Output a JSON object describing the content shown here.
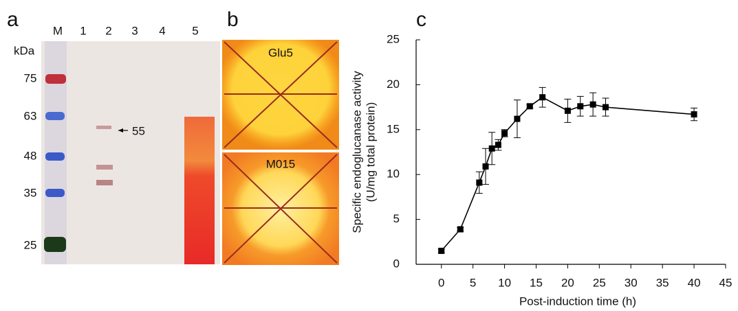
{
  "panel_a": {
    "label": "a",
    "lanes": [
      "M",
      "1",
      "2",
      "3",
      "4",
      "5"
    ],
    "unit": "kDa",
    "markers": [
      "75",
      "63",
      "48",
      "35",
      "25"
    ],
    "annotation": "55"
  },
  "panel_b": {
    "label": "b",
    "plates": [
      "Glu5",
      "M015"
    ]
  },
  "panel_c": {
    "label": "c"
  },
  "chart_data": {
    "type": "line",
    "xlabel": "Post-induction time (h)",
    "ylabel": [
      "Specific endoglucanase activity",
      "(U/mg total protein)"
    ],
    "x": [
      0,
      3,
      6,
      7,
      8,
      9,
      10,
      12,
      14,
      16,
      20,
      22,
      24,
      26,
      40
    ],
    "series": [
      {
        "color": "#000000",
        "values": [
          1.5,
          3.9,
          9.1,
          10.9,
          12.9,
          13.3,
          14.6,
          16.2,
          17.6,
          18.6,
          17.1,
          17.6,
          17.8,
          17.5,
          16.7
        ],
        "errors": [
          0.2,
          0.2,
          1.2,
          2.0,
          1.8,
          0.6,
          0.4,
          2.1,
          0.2,
          1.1,
          1.3,
          1.1,
          1.3,
          1.0,
          0.7
        ]
      }
    ],
    "xlim": [
      -4,
      45
    ],
    "ylim": [
      0,
      25
    ],
    "xticks": [
      0,
      5,
      10,
      15,
      20,
      25,
      30,
      35,
      40,
      45
    ],
    "yticks": [
      0,
      5,
      10,
      15,
      20,
      25
    ]
  }
}
